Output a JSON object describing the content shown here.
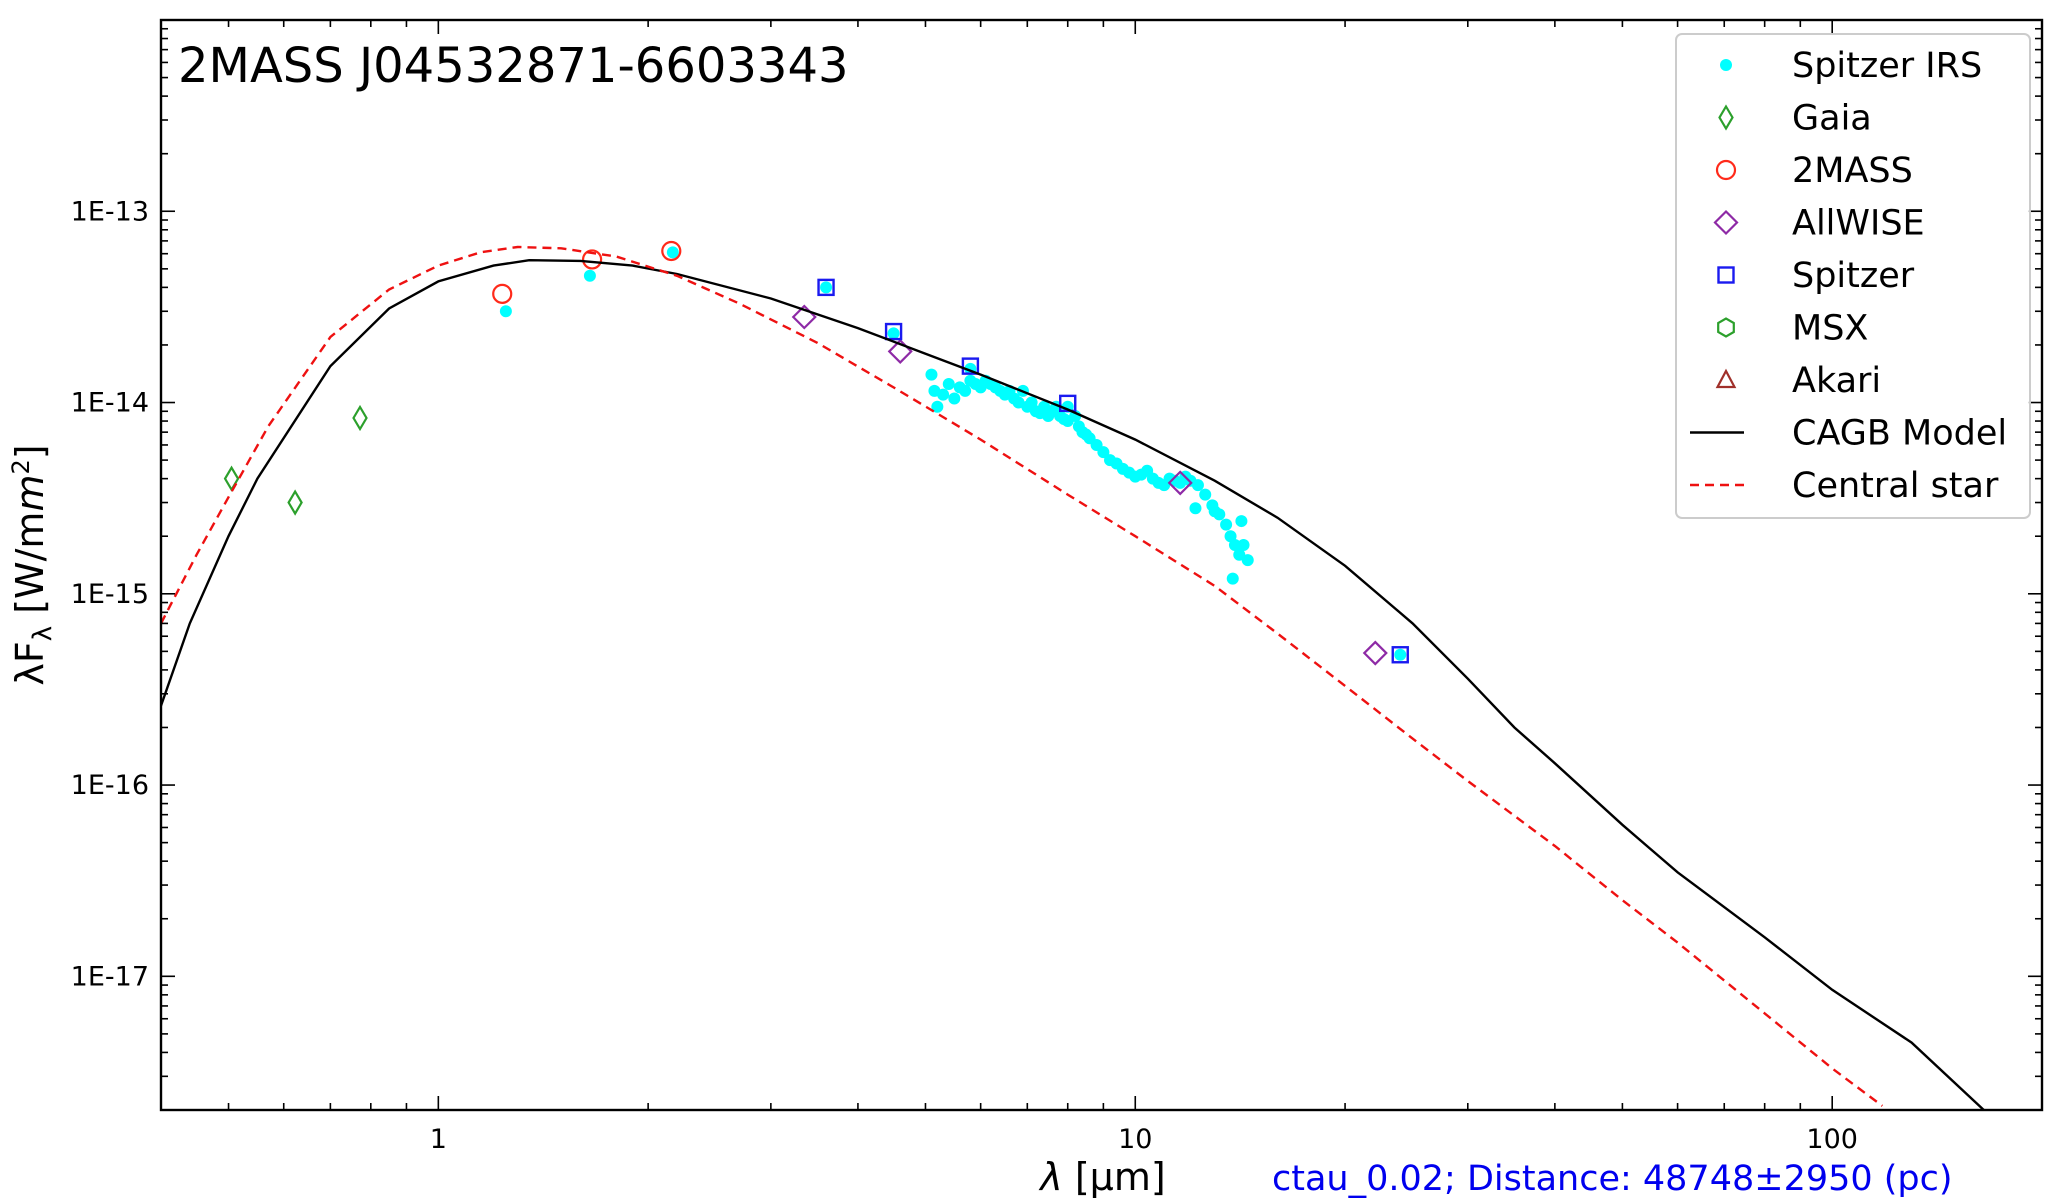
{
  "chart_data": {
    "type": "scatter",
    "title": "2MASS J04532871-6603343",
    "xlabel_symbol": "λ",
    "xlabel_unit": " [μm]",
    "ylabel_prefix": "λF",
    "ylabel_sub": "λ",
    "ylabel_unit": " [W/m",
    "ylabel_sup": "2",
    "ylabel_close": "]",
    "annotation": "ctau_0.02; Distance: 48748±2950 (pc)",
    "x_scale": "log",
    "y_scale": "log",
    "xlim": [
      0.4,
      200
    ],
    "ylim": [
      2e-18,
      1e-12
    ],
    "x_tick_labels": [
      {
        "value": 1,
        "label": "1"
      },
      {
        "value": 10,
        "label": "10"
      },
      {
        "value": 100,
        "label": "100"
      }
    ],
    "y_tick_labels": [
      {
        "value": 1e-13,
        "label": "1E-13"
      },
      {
        "value": 1e-14,
        "label": "1E-14"
      },
      {
        "value": 1e-15,
        "label": "1E-15"
      },
      {
        "value": 1e-16,
        "label": "1E-16"
      },
      {
        "value": 1e-17,
        "label": "1E-17"
      }
    ],
    "grid": false,
    "legend_position": "top-right",
    "series": [
      {
        "name": "Spitzer IRS",
        "kind": "points",
        "marker": "dot",
        "color": "#00ffff",
        "points": [
          [
            1.25,
            3e-14
          ],
          [
            1.65,
            4.6e-14
          ],
          [
            2.17,
            6.1e-14
          ],
          [
            3.6,
            4e-14
          ],
          [
            4.5,
            2.3e-14
          ],
          [
            5.8,
            1.5e-14
          ],
          [
            8.0,
            9.5e-15
          ],
          [
            24.0,
            4.8e-16
          ],
          [
            5.1,
            1.4e-14
          ],
          [
            5.15,
            1.15e-14
          ],
          [
            5.2,
            9.5e-15
          ],
          [
            5.3,
            1.1e-14
          ],
          [
            5.4,
            1.25e-14
          ],
          [
            5.5,
            1.05e-14
          ],
          [
            5.6,
            1.2e-14
          ],
          [
            5.7,
            1.15e-14
          ],
          [
            5.8,
            1.3e-14
          ],
          [
            5.9,
            1.25e-14
          ],
          [
            6.0,
            1.2e-14
          ],
          [
            6.1,
            1.3e-14
          ],
          [
            6.2,
            1.25e-14
          ],
          [
            6.3,
            1.2e-14
          ],
          [
            6.4,
            1.15e-14
          ],
          [
            6.5,
            1.1e-14
          ],
          [
            6.6,
            1.15e-14
          ],
          [
            6.7,
            1.05e-14
          ],
          [
            6.8,
            1e-14
          ],
          [
            6.9,
            1.15e-14
          ],
          [
            7.0,
            9.5e-15
          ],
          [
            7.1,
            1e-14
          ],
          [
            7.2,
            9e-15
          ],
          [
            7.3,
            8.8e-15
          ],
          [
            7.4,
            9.5e-15
          ],
          [
            7.5,
            8.5e-15
          ],
          [
            7.6,
            9e-15
          ],
          [
            7.7,
            9.5e-15
          ],
          [
            7.8,
            8.5e-15
          ],
          [
            7.9,
            8.2e-15
          ],
          [
            8.0,
            8e-15
          ],
          [
            8.2,
            8.5e-15
          ],
          [
            8.3,
            7.5e-15
          ],
          [
            8.4,
            7e-15
          ],
          [
            8.5,
            6.8e-15
          ],
          [
            8.6,
            6.5e-15
          ],
          [
            8.8,
            6e-15
          ],
          [
            9.0,
            5.5e-15
          ],
          [
            9.2,
            5e-15
          ],
          [
            9.4,
            4.8e-15
          ],
          [
            9.6,
            4.5e-15
          ],
          [
            9.8,
            4.3e-15
          ],
          [
            10.0,
            4.1e-15
          ],
          [
            10.2,
            4.2e-15
          ],
          [
            10.4,
            4.4e-15
          ],
          [
            10.6,
            4e-15
          ],
          [
            10.8,
            3.8e-15
          ],
          [
            11.0,
            3.7e-15
          ],
          [
            11.2,
            4e-15
          ],
          [
            11.4,
            3.9e-15
          ],
          [
            11.6,
            3.8e-15
          ],
          [
            11.8,
            4.1e-15
          ],
          [
            12.0,
            3.9e-15
          ],
          [
            12.3,
            3.7e-15
          ],
          [
            12.6,
            3.3e-15
          ],
          [
            12.9,
            2.9e-15
          ],
          [
            13.2,
            2.6e-15
          ],
          [
            13.5,
            2.3e-15
          ],
          [
            13.7,
            2e-15
          ],
          [
            13.9,
            1.8e-15
          ],
          [
            14.1,
            1.6e-15
          ],
          [
            14.3,
            1.8e-15
          ],
          [
            14.5,
            1.5e-15
          ],
          [
            14.2,
            2.4e-15
          ],
          [
            13.8,
            1.2e-15
          ],
          [
            13.0,
            2.7e-15
          ],
          [
            12.2,
            2.8e-15
          ]
        ]
      },
      {
        "name": "Gaia",
        "kind": "points",
        "marker": "thin-diamond",
        "color": "#2ca02c",
        "points": [
          [
            0.505,
            4e-15
          ],
          [
            0.623,
            3e-15
          ],
          [
            0.772,
            8.3e-15
          ]
        ]
      },
      {
        "name": "2MASS",
        "kind": "points",
        "marker": "circle",
        "color": "#ff2a1a",
        "points": [
          [
            1.235,
            3.7e-14
          ],
          [
            1.662,
            5.6e-14
          ],
          [
            2.159,
            6.2e-14
          ]
        ]
      },
      {
        "name": "AllWISE",
        "kind": "points",
        "marker": "diamond",
        "color": "#8e2aa6",
        "points": [
          [
            3.35,
            2.8e-14
          ],
          [
            4.6,
            1.85e-14
          ],
          [
            11.6,
            3.8e-15
          ],
          [
            22.1,
            4.9e-16
          ]
        ]
      },
      {
        "name": "Spitzer",
        "kind": "points",
        "marker": "square",
        "color": "#1a1af0",
        "points": [
          [
            3.6,
            4e-14
          ],
          [
            4.5,
            2.35e-14
          ],
          [
            5.8,
            1.55e-14
          ],
          [
            8.0,
            9.9e-15
          ],
          [
            24.0,
            4.8e-16
          ]
        ]
      },
      {
        "name": "MSX",
        "kind": "points",
        "marker": "hexagon",
        "color": "#2ca02c",
        "points": []
      },
      {
        "name": "Akari",
        "kind": "points",
        "marker": "triangle",
        "color": "#a0302a",
        "points": []
      },
      {
        "name": "CAGB Model",
        "kind": "line",
        "dash": "solid",
        "color": "#000000",
        "points": [
          [
            0.4,
            2.6e-16
          ],
          [
            0.44,
            7e-16
          ],
          [
            0.5,
            2e-15
          ],
          [
            0.55,
            4e-15
          ],
          [
            0.7,
            1.55e-14
          ],
          [
            0.85,
            3.1e-14
          ],
          [
            1.0,
            4.3e-14
          ],
          [
            1.2,
            5.2e-14
          ],
          [
            1.35,
            5.55e-14
          ],
          [
            1.6,
            5.5e-14
          ],
          [
            1.9,
            5.2e-14
          ],
          [
            2.2,
            4.7e-14
          ],
          [
            3.0,
            3.5e-14
          ],
          [
            4.0,
            2.45e-14
          ],
          [
            5.0,
            1.8e-14
          ],
          [
            6.0,
            1.4e-14
          ],
          [
            8.0,
            9.2e-15
          ],
          [
            10.0,
            6.4e-15
          ],
          [
            13.0,
            3.9e-15
          ],
          [
            16.0,
            2.5e-15
          ],
          [
            20.0,
            1.4e-15
          ],
          [
            25.0,
            7e-16
          ],
          [
            30.0,
            3.6e-16
          ],
          [
            35.0,
            2e-16
          ],
          [
            40.0,
            1.3e-16
          ],
          [
            50.0,
            6.2e-17
          ],
          [
            60.0,
            3.5e-17
          ],
          [
            80.0,
            1.6e-17
          ],
          [
            100.0,
            8.5e-18
          ],
          [
            130.0,
            4.5e-18
          ],
          [
            165.0,
            2e-18
          ]
        ]
      },
      {
        "name": "Central star",
        "kind": "line",
        "dash": "dashed",
        "color": "#ee1111",
        "points": [
          [
            0.4,
            7e-16
          ],
          [
            0.45,
            1.6e-15
          ],
          [
            0.5,
            3.2e-15
          ],
          [
            0.57,
            7.5e-15
          ],
          [
            0.7,
            2.2e-14
          ],
          [
            0.85,
            3.9e-14
          ],
          [
            1.0,
            5.2e-14
          ],
          [
            1.15,
            6.1e-14
          ],
          [
            1.3,
            6.5e-14
          ],
          [
            1.5,
            6.4e-14
          ],
          [
            1.8,
            5.8e-14
          ],
          [
            2.2,
            4.6e-14
          ],
          [
            2.7,
            3.3e-14
          ],
          [
            3.5,
            2.05e-14
          ],
          [
            4.5,
            1.2e-14
          ],
          [
            6.0,
            6.4e-15
          ],
          [
            8.0,
            3.3e-15
          ],
          [
            10.0,
            2e-15
          ],
          [
            13.0,
            1.1e-15
          ],
          [
            16.0,
            6.2e-16
          ],
          [
            20.0,
            3.3e-16
          ],
          [
            25.0,
            1.75e-16
          ],
          [
            30.0,
            1.05e-16
          ],
          [
            40.0,
            4.8e-17
          ],
          [
            50.0,
            2.5e-17
          ],
          [
            60.0,
            1.5e-17
          ],
          [
            80.0,
            6.4e-18
          ],
          [
            100.0,
            3.3e-18
          ],
          [
            118.0,
            2.1e-18
          ]
        ]
      }
    ]
  }
}
